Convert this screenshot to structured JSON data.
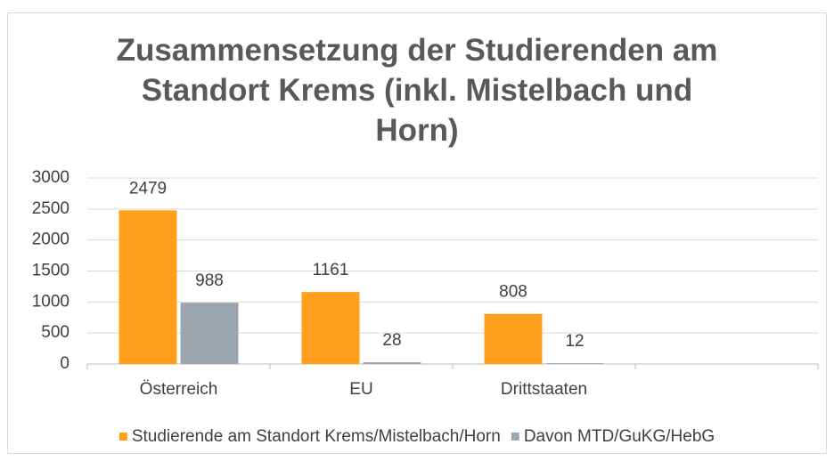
{
  "chart_data": {
    "type": "bar",
    "title": "Zusammensetzung der Studierenden am Standort Krems (inkl. Mistelbach und Horn)",
    "categories": [
      "Österreich",
      "EU",
      "Drittstaaten",
      null
    ],
    "series": [
      {
        "name": "Studierende am Standort Krems/Mistelbach/Horn",
        "color": "#ff9f1c",
        "values": [
          2479,
          1161,
          808,
          null
        ]
      },
      {
        "name": "Davon MTD/GuKG/HebG",
        "color": "#9ba6ae",
        "values": [
          988,
          28,
          12,
          null
        ]
      }
    ],
    "ylim": [
      0,
      3000
    ],
    "yticks": [
      0,
      500,
      1000,
      1500,
      2000,
      2500,
      3000
    ],
    "grid": true,
    "legend": "bottom"
  }
}
